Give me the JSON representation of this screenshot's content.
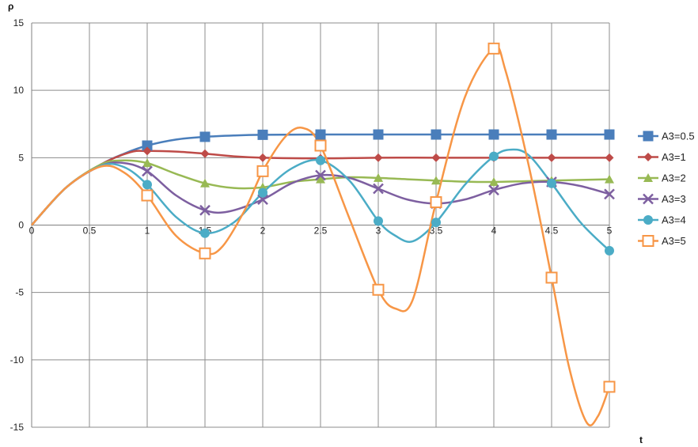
{
  "chart_data": {
    "type": "line",
    "xlabel": "t",
    "ylabel": "ρ",
    "xlim": [
      0,
      5
    ],
    "ylim": [
      -15,
      15
    ],
    "xticks": [
      "0",
      "0.5",
      "1",
      "1.5",
      "2",
      "2.5",
      "3",
      "3.5",
      "4",
      "4.5",
      "5"
    ],
    "yticks": [
      "15",
      "10",
      "5",
      "0",
      "-5",
      "-10",
      "-15"
    ],
    "grid": true,
    "legend": "right",
    "series": [
      {
        "name": "A3=0.5",
        "color": "#4a7ebb",
        "marker": "square-filled",
        "points": [
          [
            1,
            5.9
          ],
          [
            1.5,
            6.55
          ],
          [
            2,
            6.7
          ],
          [
            2.5,
            6.72
          ],
          [
            3,
            6.72
          ],
          [
            3.5,
            6.72
          ],
          [
            4,
            6.72
          ],
          [
            4.5,
            6.72
          ],
          [
            5,
            6.72
          ]
        ],
        "curve": [
          [
            0,
            0
          ],
          [
            0.3,
            2.8
          ],
          [
            0.6,
            4.5
          ],
          [
            0.8,
            5.3
          ],
          [
            1,
            5.9
          ],
          [
            1.25,
            6.35
          ],
          [
            1.5,
            6.55
          ],
          [
            1.75,
            6.65
          ],
          [
            2,
            6.7
          ],
          [
            2.5,
            6.72
          ],
          [
            3,
            6.72
          ],
          [
            3.5,
            6.72
          ],
          [
            4,
            6.72
          ],
          [
            4.5,
            6.72
          ],
          [
            5,
            6.72
          ]
        ]
      },
      {
        "name": "A3=1",
        "color": "#be4b48",
        "marker": "diamond-filled",
        "points": [
          [
            1,
            5.5
          ],
          [
            1.5,
            5.3
          ],
          [
            2,
            5.0
          ],
          [
            2.5,
            4.95
          ],
          [
            3,
            5.0
          ],
          [
            3.5,
            5.0
          ],
          [
            4,
            5.0
          ],
          [
            4.5,
            5.0
          ],
          [
            5,
            5.0
          ]
        ],
        "curve": [
          [
            0,
            0
          ],
          [
            0.3,
            2.8
          ],
          [
            0.6,
            4.5
          ],
          [
            0.85,
            5.4
          ],
          [
            1,
            5.5
          ],
          [
            1.25,
            5.45
          ],
          [
            1.5,
            5.3
          ],
          [
            1.75,
            5.1
          ],
          [
            2,
            5.0
          ],
          [
            2.5,
            4.95
          ],
          [
            3,
            5.0
          ],
          [
            3.5,
            5.0
          ],
          [
            4,
            5.0
          ],
          [
            4.5,
            5.0
          ],
          [
            5,
            5.0
          ]
        ]
      },
      {
        "name": "A3=2",
        "color": "#98b954",
        "marker": "triangle-filled",
        "points": [
          [
            1,
            4.6
          ],
          [
            1.5,
            3.1
          ],
          [
            2,
            2.8
          ],
          [
            2.5,
            3.4
          ],
          [
            3,
            3.5
          ],
          [
            3.5,
            3.3
          ],
          [
            4,
            3.2
          ],
          [
            4.5,
            3.3
          ],
          [
            5,
            3.4
          ]
        ],
        "curve": [
          [
            0,
            0
          ],
          [
            0.3,
            2.8
          ],
          [
            0.6,
            4.5
          ],
          [
            0.8,
            4.8
          ],
          [
            1,
            4.6
          ],
          [
            1.25,
            3.8
          ],
          [
            1.5,
            3.1
          ],
          [
            1.75,
            2.75
          ],
          [
            2,
            2.8
          ],
          [
            2.25,
            3.2
          ],
          [
            2.5,
            3.4
          ],
          [
            2.75,
            3.55
          ],
          [
            3,
            3.5
          ],
          [
            3.25,
            3.4
          ],
          [
            3.5,
            3.3
          ],
          [
            3.75,
            3.22
          ],
          [
            4,
            3.2
          ],
          [
            4.5,
            3.3
          ],
          [
            5,
            3.4
          ]
        ]
      },
      {
        "name": "A3=3",
        "color": "#7d5fa0",
        "marker": "x",
        "points": [
          [
            1,
            4.0
          ],
          [
            1.5,
            1.1
          ],
          [
            2,
            1.9
          ],
          [
            2.5,
            3.7
          ],
          [
            3,
            2.7
          ],
          [
            3.5,
            1.6
          ],
          [
            4,
            2.6
          ],
          [
            4.5,
            3.2
          ],
          [
            5,
            2.3
          ]
        ],
        "curve": [
          [
            0,
            0
          ],
          [
            0.3,
            2.8
          ],
          [
            0.6,
            4.4
          ],
          [
            0.8,
            4.6
          ],
          [
            1,
            4.0
          ],
          [
            1.25,
            2.2
          ],
          [
            1.5,
            1.1
          ],
          [
            1.7,
            1.0
          ],
          [
            2,
            1.9
          ],
          [
            2.25,
            3.1
          ],
          [
            2.5,
            3.7
          ],
          [
            2.75,
            3.5
          ],
          [
            3,
            2.7
          ],
          [
            3.25,
            1.9
          ],
          [
            3.5,
            1.6
          ],
          [
            3.75,
            1.9
          ],
          [
            4,
            2.6
          ],
          [
            4.25,
            3.1
          ],
          [
            4.5,
            3.2
          ],
          [
            4.75,
            2.9
          ],
          [
            5,
            2.3
          ]
        ]
      },
      {
        "name": "A3=4",
        "color": "#4bacc6",
        "marker": "circle-filled",
        "points": [
          [
            1,
            3.0
          ],
          [
            1.5,
            -0.6
          ],
          [
            2,
            2.4
          ],
          [
            2.5,
            4.8
          ],
          [
            3,
            0.3
          ],
          [
            3.5,
            0.2
          ],
          [
            4,
            5.1
          ],
          [
            4.5,
            3.1
          ],
          [
            5,
            -1.9
          ]
        ],
        "curve": [
          [
            0,
            0
          ],
          [
            0.3,
            2.8
          ],
          [
            0.6,
            4.4
          ],
          [
            0.8,
            4.3
          ],
          [
            1,
            3.0
          ],
          [
            1.25,
            0.6
          ],
          [
            1.5,
            -0.6
          ],
          [
            1.75,
            0.2
          ],
          [
            2,
            2.4
          ],
          [
            2.25,
            4.2
          ],
          [
            2.5,
            4.8
          ],
          [
            2.75,
            3.3
          ],
          [
            3,
            0.3
          ],
          [
            3.15,
            -0.8
          ],
          [
            3.3,
            -1.2
          ],
          [
            3.5,
            0.2
          ],
          [
            3.75,
            3.0
          ],
          [
            4,
            5.1
          ],
          [
            4.15,
            5.6
          ],
          [
            4.3,
            5.2
          ],
          [
            4.5,
            3.1
          ],
          [
            4.75,
            0.2
          ],
          [
            5,
            -1.9
          ]
        ]
      },
      {
        "name": "A3=5",
        "color": "#f79646",
        "marker": "square-open",
        "points": [
          [
            1,
            2.2
          ],
          [
            1.5,
            -2.1
          ],
          [
            2,
            4.0
          ],
          [
            2.5,
            5.9
          ],
          [
            3,
            -4.8
          ],
          [
            3.5,
            1.7
          ],
          [
            4,
            13.1
          ],
          [
            4.5,
            -3.9
          ],
          [
            5,
            -12.0
          ]
        ],
        "curve": [
          [
            0,
            0
          ],
          [
            0.3,
            2.8
          ],
          [
            0.6,
            4.35
          ],
          [
            0.8,
            3.9
          ],
          [
            1,
            2.2
          ],
          [
            1.25,
            -0.8
          ],
          [
            1.5,
            -2.1
          ],
          [
            1.65,
            -1.6
          ],
          [
            1.85,
            1.2
          ],
          [
            2,
            4.0
          ],
          [
            2.2,
            6.6
          ],
          [
            2.35,
            7.2
          ],
          [
            2.5,
            5.9
          ],
          [
            2.75,
            0.5
          ],
          [
            3,
            -4.8
          ],
          [
            3.15,
            -6.2
          ],
          [
            3.3,
            -5.5
          ],
          [
            3.5,
            1.7
          ],
          [
            3.75,
            9.5
          ],
          [
            4,
            13.1
          ],
          [
            4.1,
            11.5
          ],
          [
            4.3,
            4.5
          ],
          [
            4.5,
            -3.9
          ],
          [
            4.65,
            -10.5
          ],
          [
            4.8,
            -14.6
          ],
          [
            4.9,
            -14.2
          ],
          [
            5,
            -12.0
          ]
        ]
      }
    ]
  }
}
